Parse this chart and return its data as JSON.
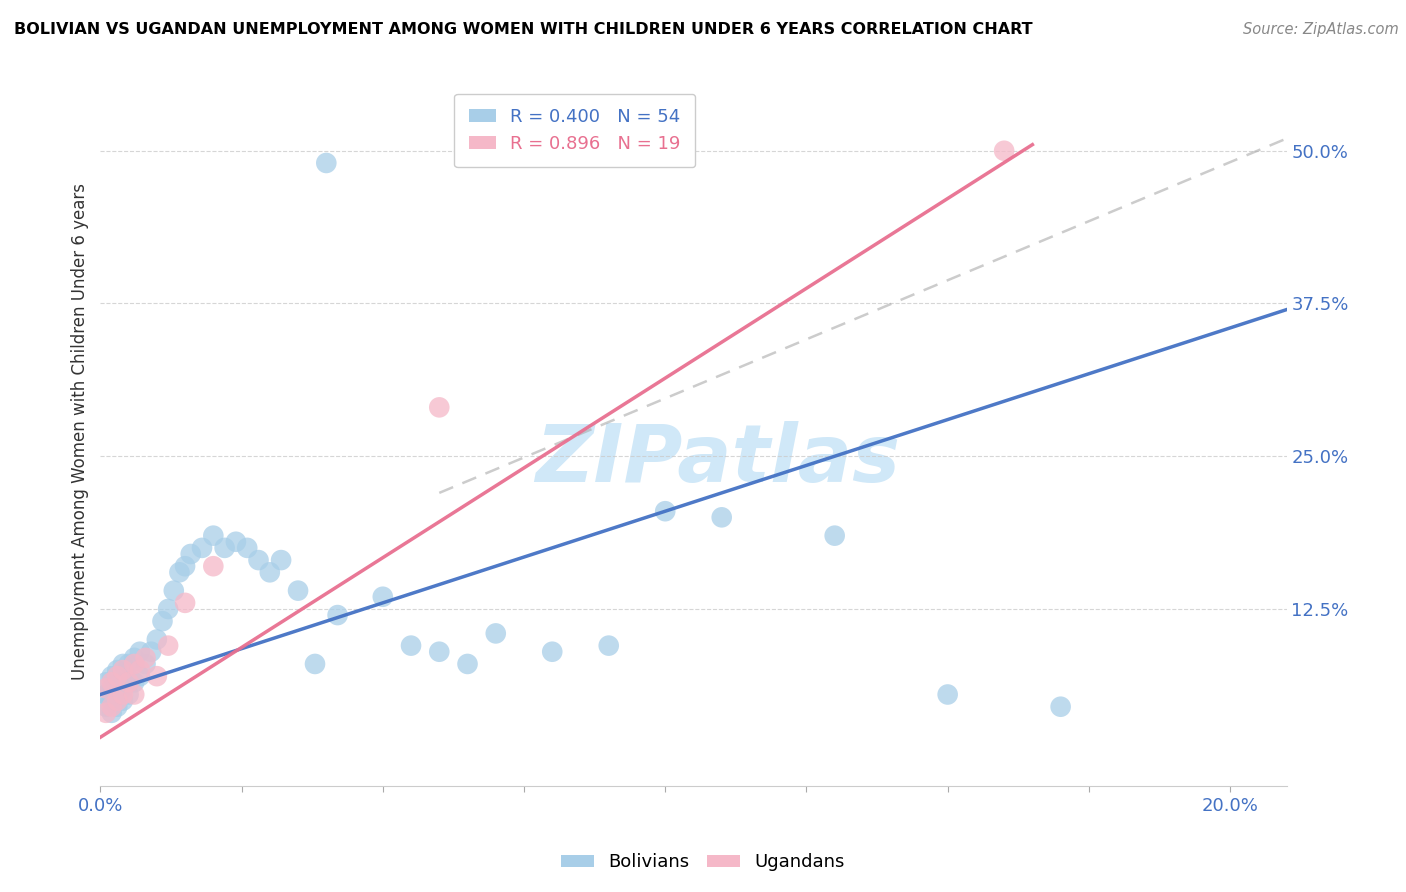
{
  "title": "BOLIVIAN VS UGANDAN UNEMPLOYMENT AMONG WOMEN WITH CHILDREN UNDER 6 YEARS CORRELATION CHART",
  "source": "Source: ZipAtlas.com",
  "ylabel": "Unemployment Among Women with Children Under 6 years",
  "xlim": [
    0.0,
    0.21
  ],
  "ylim": [
    -0.02,
    0.56
  ],
  "ytick_vals": [
    0.125,
    0.25,
    0.375,
    0.5
  ],
  "ytick_labels": [
    "12.5%",
    "25.0%",
    "37.5%",
    "50.0%"
  ],
  "legend_R_blue": "R = 0.400",
  "legend_N_blue": "N = 54",
  "legend_R_pink": "R = 0.896",
  "legend_N_pink": "N = 19",
  "blue_scatter_color": "#A8CEE8",
  "pink_scatter_color": "#F5B8C8",
  "blue_line_color": "#4472C4",
  "pink_line_color": "#E87090",
  "blue_dashed_color": "#A8CEE8",
  "watermark_color": "#D0E8F8",
  "background_color": "#FFFFFF",
  "blue_scatter_x": [
    0.001,
    0.001,
    0.001,
    0.002,
    0.002,
    0.002,
    0.002,
    0.003,
    0.003,
    0.003,
    0.003,
    0.004,
    0.004,
    0.004,
    0.005,
    0.005,
    0.005,
    0.006,
    0.006,
    0.007,
    0.007,
    0.008,
    0.009,
    0.01,
    0.011,
    0.012,
    0.013,
    0.014,
    0.015,
    0.016,
    0.018,
    0.02,
    0.022,
    0.024,
    0.026,
    0.028,
    0.03,
    0.032,
    0.035,
    0.038,
    0.042,
    0.05,
    0.055,
    0.06,
    0.065,
    0.07,
    0.08,
    0.09,
    0.1,
    0.11,
    0.13,
    0.15,
    0.17,
    0.04
  ],
  "blue_scatter_y": [
    0.045,
    0.055,
    0.065,
    0.04,
    0.05,
    0.06,
    0.07,
    0.045,
    0.055,
    0.065,
    0.075,
    0.05,
    0.06,
    0.08,
    0.055,
    0.065,
    0.08,
    0.065,
    0.085,
    0.07,
    0.09,
    0.08,
    0.09,
    0.1,
    0.115,
    0.125,
    0.14,
    0.155,
    0.16,
    0.17,
    0.175,
    0.185,
    0.175,
    0.18,
    0.175,
    0.165,
    0.155,
    0.165,
    0.14,
    0.08,
    0.12,
    0.135,
    0.095,
    0.09,
    0.08,
    0.105,
    0.09,
    0.095,
    0.205,
    0.2,
    0.185,
    0.055,
    0.045,
    0.49
  ],
  "pink_scatter_x": [
    0.001,
    0.001,
    0.002,
    0.002,
    0.003,
    0.003,
    0.004,
    0.004,
    0.005,
    0.006,
    0.006,
    0.007,
    0.008,
    0.01,
    0.012,
    0.015,
    0.02,
    0.06,
    0.16
  ],
  "pink_scatter_y": [
    0.04,
    0.06,
    0.045,
    0.065,
    0.05,
    0.07,
    0.055,
    0.075,
    0.065,
    0.055,
    0.08,
    0.075,
    0.085,
    0.07,
    0.095,
    0.13,
    0.16,
    0.29,
    0.5
  ],
  "blue_solid_line": [
    [
      0.0,
      0.21
    ],
    [
      0.055,
      0.37
    ]
  ],
  "pink_solid_line": [
    [
      0.0,
      0.165
    ],
    [
      0.02,
      0.505
    ]
  ],
  "blue_dashed_line": [
    [
      0.06,
      0.21
    ],
    [
      0.22,
      0.51
    ]
  ]
}
